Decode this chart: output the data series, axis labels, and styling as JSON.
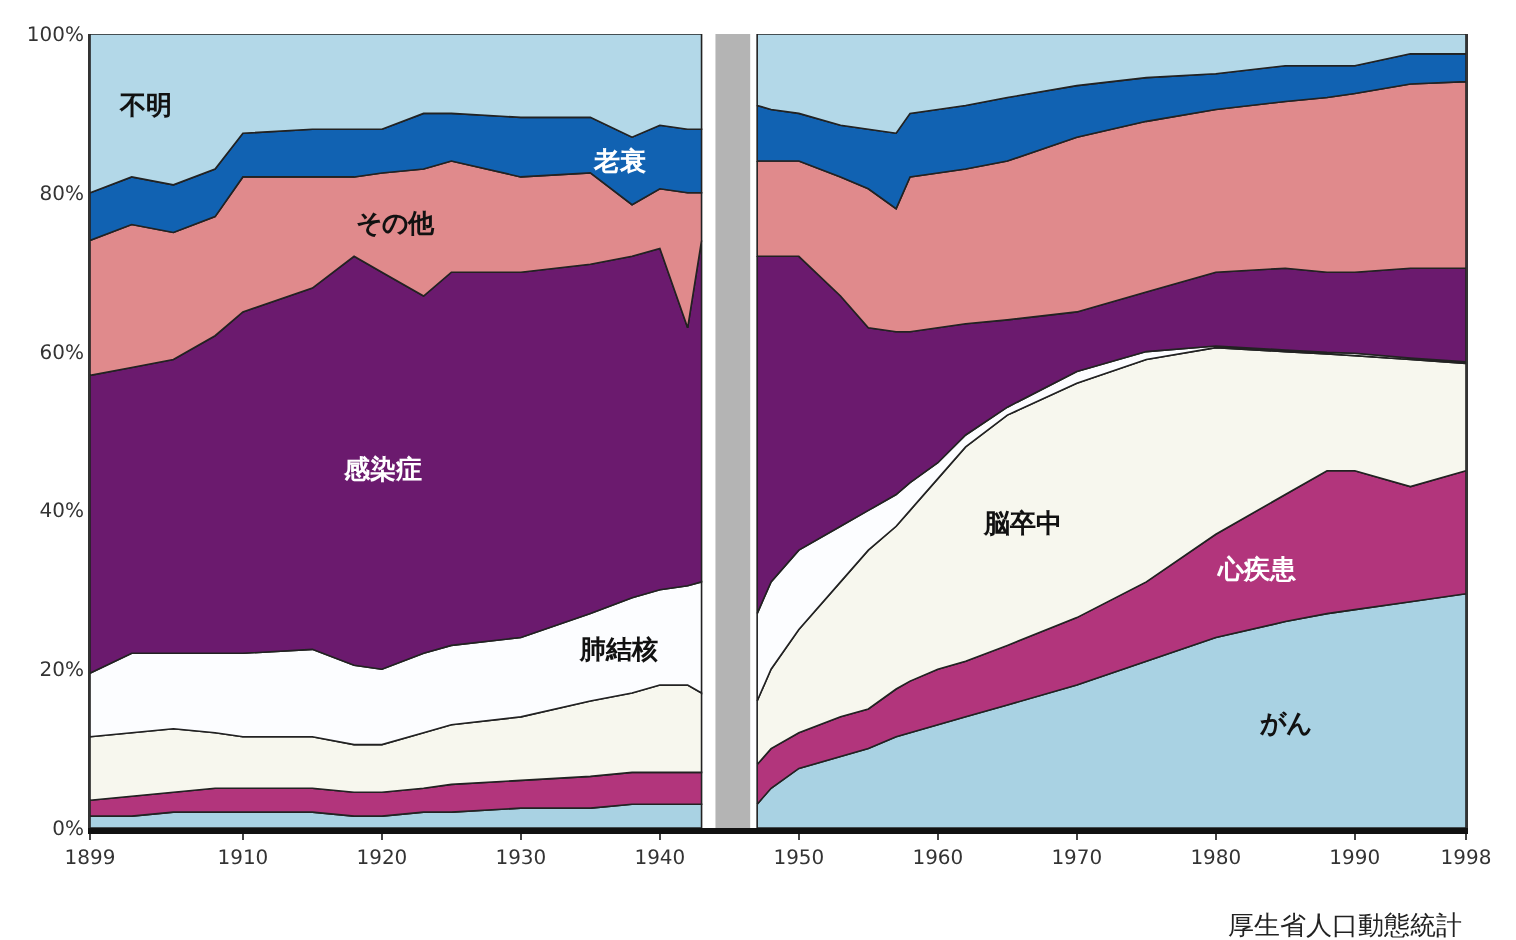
{
  "chart_data": {
    "type": "area",
    "stacked": true,
    "x": [
      1899,
      1902,
      1905,
      1908,
      1910,
      1915,
      1918,
      1920,
      1923,
      1925,
      1930,
      1935,
      1938,
      1940,
      1942,
      1943,
      1945,
      1947,
      1948,
      1950,
      1953,
      1955,
      1957,
      1958,
      1960,
      1962,
      1965,
      1970,
      1975,
      1980,
      1985,
      1988,
      1990,
      1994,
      1998
    ],
    "series": [
      {
        "name": "がん",
        "color": "#a9d2e3",
        "values": [
          1.5,
          1.5,
          2,
          2,
          2,
          2,
          1.5,
          1.5,
          2,
          2,
          2.5,
          2.5,
          3,
          3,
          3,
          3,
          null,
          3,
          5,
          7.5,
          9,
          10,
          11.5,
          12,
          13,
          14,
          15.5,
          18,
          21,
          24,
          26,
          27,
          27.5,
          28.5,
          29.5
        ]
      },
      {
        "name": "心疾患",
        "color": "#b2357c",
        "values": [
          2,
          2.5,
          2.5,
          3,
          3,
          3,
          3,
          3,
          3,
          3.5,
          3.5,
          4,
          4,
          4,
          4,
          4,
          null,
          5,
          5,
          4.5,
          5,
          5,
          6,
          6.5,
          7,
          7,
          7.5,
          8.5,
          10,
          13,
          16,
          18,
          17.5,
          14.5,
          15.5
        ]
      },
      {
        "name": "脳卒中",
        "color": "#f7f7ee",
        "values": [
          8,
          8,
          8,
          7,
          6.5,
          6.5,
          6,
          6,
          7,
          7.5,
          8,
          9.5,
          10,
          11,
          11,
          10,
          null,
          8,
          10,
          13,
          17,
          20,
          20.5,
          21.5,
          24,
          27,
          29,
          29.5,
          28,
          23.5,
          18,
          14.7,
          14.5,
          16,
          13.5
        ]
      },
      {
        "name": "肺結核",
        "color": "#fcfdff",
        "values": [
          8,
          10,
          9.5,
          10,
          10.5,
          11,
          10,
          9.5,
          10,
          10,
          10,
          11,
          12,
          12,
          12.5,
          14,
          null,
          11,
          11,
          10,
          7,
          5,
          4,
          3.5,
          2,
          1.5,
          1,
          1.5,
          1,
          0.2,
          0.2,
          0.2,
          0.3,
          0.2,
          0.2
        ]
      },
      {
        "name": "感染症",
        "color": "#6b1a6e",
        "values": [
          37.5,
          36,
          37,
          40,
          43,
          45.5,
          51.5,
          50,
          45,
          47,
          46,
          44,
          43,
          43,
          32.5,
          43,
          null,
          45,
          41,
          37,
          29,
          23,
          20.5,
          19,
          17,
          14,
          11,
          7.5,
          7.5,
          9.3,
          10.3,
          10.1,
          10.2,
          11.3,
          11.8
        ]
      },
      {
        "name": "その他",
        "color": "#e08a8c",
        "values": [
          17,
          18,
          16,
          15,
          17,
          14,
          10,
          12.5,
          16,
          14,
          12,
          11.5,
          6.5,
          7.5,
          17,
          6,
          null,
          12,
          12,
          12,
          15,
          17.5,
          15.5,
          19.5,
          19.5,
          19.5,
          20,
          22,
          21.5,
          20.5,
          21,
          22,
          22.5,
          23.2,
          23.5
        ]
      },
      {
        "name": "老衰",
        "color": "#1162b2",
        "values": [
          6,
          6,
          6,
          6,
          5.5,
          6,
          6,
          5.5,
          7,
          6,
          7.5,
          7,
          8.5,
          8,
          8,
          8,
          null,
          7,
          6.5,
          6,
          6.5,
          7.5,
          9.5,
          8,
          8,
          8,
          8,
          6.5,
          5.5,
          4.5,
          4.5,
          4,
          3.5,
          3.8,
          3.5
        ]
      },
      {
        "name": "不明",
        "color": "#b3d8e8",
        "values": [
          20,
          18,
          19,
          17,
          12.5,
          12,
          12,
          12,
          10,
          10,
          10.5,
          10.5,
          13,
          11.5,
          12,
          12,
          null,
          9,
          9.5,
          10,
          11.5,
          12,
          12.5,
          10,
          9.5,
          9,
          8,
          6.5,
          5.5,
          5,
          4,
          4,
          4,
          2.5,
          2.5
        ]
      }
    ],
    "xlim": [
      1899,
      1998
    ],
    "xticks": [
      1899,
      1910,
      1920,
      1930,
      1940,
      1950,
      1960,
      1970,
      1980,
      1990,
      1998
    ],
    "ylim": [
      0,
      100
    ],
    "yticks": [
      {
        "value": 0,
        "label": "0%"
      },
      {
        "value": 20,
        "label": "20%"
      },
      {
        "value": 40,
        "label": "40%"
      },
      {
        "value": 60,
        "label": "60%"
      },
      {
        "value": 80,
        "label": "80%"
      },
      {
        "value": 100,
        "label": "100%"
      }
    ],
    "bands": [
      {
        "axis": "x",
        "from": 1944,
        "to": 1946.5,
        "color": "#b4b4b4"
      }
    ],
    "annotations": [
      "厚生省人口動態統計"
    ],
    "legend": false
  }
}
